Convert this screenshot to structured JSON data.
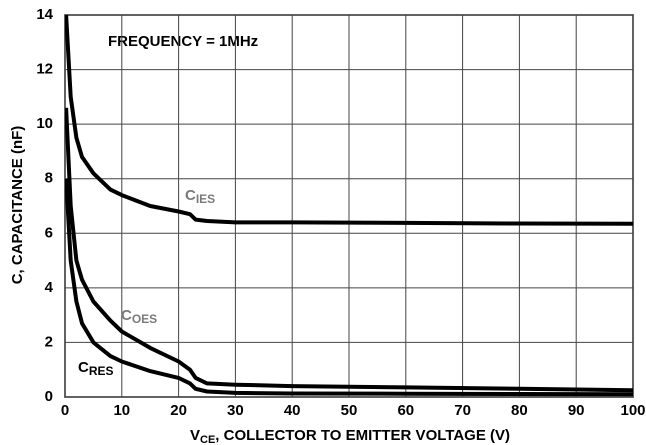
{
  "chart_data": {
    "type": "line",
    "annotation": "FREQUENCY = 1MHz",
    "xlabel": [
      "V",
      "CE",
      ", COLLECTOR TO EMITTER VOLTAGE (V)"
    ],
    "ylabel": "C, CAPACITANCE (nF)",
    "x": [
      0.2,
      1,
      2,
      3,
      5,
      8,
      10,
      15,
      20,
      22,
      23,
      25,
      30,
      40,
      60,
      80,
      100
    ],
    "series": [
      {
        "name": [
          "C",
          "IES"
        ],
        "color": "#000000",
        "label_color": "#7a7a7a",
        "values": [
          14,
          11,
          9.5,
          8.8,
          8.2,
          7.6,
          7.4,
          7.0,
          6.8,
          6.7,
          6.5,
          6.45,
          6.4,
          6.4,
          6.38,
          6.36,
          6.35
        ]
      },
      {
        "name": [
          "C",
          "OES"
        ],
        "color": "#000000",
        "label_color": "#7a7a7a",
        "values": [
          10.6,
          7,
          5,
          4.3,
          3.5,
          2.8,
          2.4,
          1.8,
          1.3,
          1.0,
          0.7,
          0.5,
          0.45,
          0.4,
          0.35,
          0.3,
          0.25
        ]
      },
      {
        "name": [
          "C",
          "RES"
        ],
        "color": "#000000",
        "label_color": "#000000",
        "values": [
          8,
          5,
          3.5,
          2.7,
          2.0,
          1.5,
          1.3,
          0.95,
          0.7,
          0.5,
          0.3,
          0.2,
          0.15,
          0.13,
          0.12,
          0.11,
          0.1
        ]
      }
    ],
    "xlim": [
      0,
      100
    ],
    "xticks": [
      0,
      10,
      20,
      30,
      40,
      50,
      60,
      70,
      80,
      90,
      100
    ],
    "ylim": [
      0,
      14
    ],
    "yticks": [
      0,
      2,
      4,
      6,
      8,
      10,
      12,
      14
    ],
    "grid": true
  }
}
